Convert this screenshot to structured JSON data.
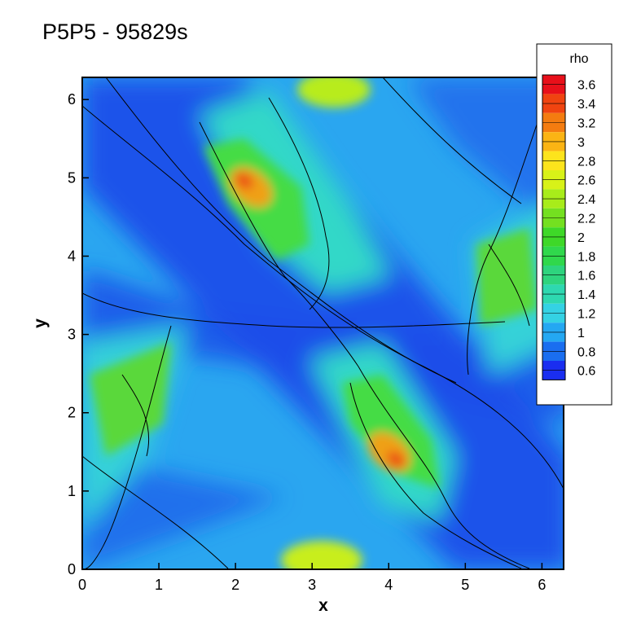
{
  "title": "P5P5 - 95829s",
  "chart_data": {
    "type": "heatmap",
    "title": "P5P5 - 95829s",
    "xlabel": "x",
    "ylabel": "y",
    "xlim": [
      0,
      6.283
    ],
    "ylim": [
      0,
      6.283
    ],
    "x_ticks": [
      "0",
      "1",
      "2",
      "3",
      "4",
      "5",
      "6"
    ],
    "y_ticks": [
      "0",
      "1",
      "2",
      "3",
      "4",
      "5",
      "6"
    ],
    "colorbar": {
      "title": "rho",
      "levels": [
        "3.6",
        "3.4",
        "3.2",
        "3",
        "2.8",
        "2.6",
        "2.4",
        "2.2",
        "2",
        "1.8",
        "1.6",
        "1.4",
        "1.2",
        "1",
        "0.8",
        "0.6"
      ],
      "colors": [
        "#e8101a",
        "#f04410",
        "#f47c10",
        "#fbb414",
        "#fde41c",
        "#d8f218",
        "#a8ec1a",
        "#74e020",
        "#3ed828",
        "#30d84c",
        "#2ed47e",
        "#2ed8b0",
        "#34d2e4",
        "#24a8f2",
        "#1a6ef0",
        "#1a2ef0"
      ]
    },
    "features": [
      {
        "name": "high-density peak",
        "x": 2.25,
        "y": 4.8,
        "rho": 3.4
      },
      {
        "name": "high-density peak",
        "x": 4.0,
        "y": 1.45,
        "rho": 3.4
      },
      {
        "name": "dense blob",
        "x": 3.3,
        "y": 6.2,
        "rho": 2.8
      },
      {
        "name": "dense blob",
        "x": 3.2,
        "y": 0.1,
        "rho": 2.8
      },
      {
        "name": "dense blob",
        "x": 5.3,
        "y": 3.8,
        "rho": 2.0
      },
      {
        "name": "dense blob",
        "x": 0.7,
        "y": 2.5,
        "rho": 2.0
      }
    ]
  }
}
